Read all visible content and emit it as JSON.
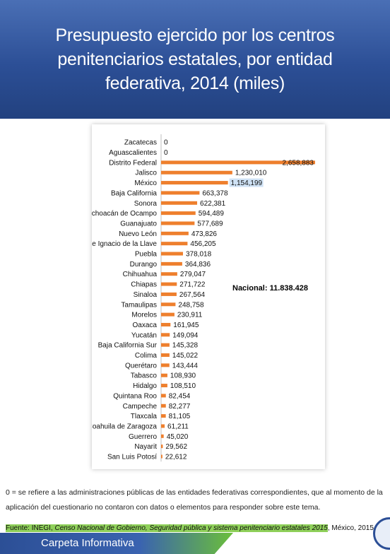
{
  "header": {
    "title": "Presupuesto ejercido por los centros penitenciarios estatales, por entidad federativa, 2014 (miles)"
  },
  "chart_data": {
    "type": "bar",
    "orientation": "horizontal",
    "categories": [
      "Zacatecas",
      "Aguascalientes",
      "Distrito Federal",
      "Jalisco",
      "México",
      "Baja California",
      "Sonora",
      "Michoacán de Ocampo",
      "Guanajuato",
      "Nuevo León",
      "Veracruz de Ignacio de la Llave",
      "Puebla",
      "Durango",
      "Chihuahua",
      "Chiapas",
      "Sinaloa",
      "Tamaulipas",
      "Morelos",
      "Oaxaca",
      "Yucatán",
      "Baja California Sur",
      "Colima",
      "Querétaro",
      "Tabasco",
      "Hidalgo",
      "Quintana Roo",
      "Campeche",
      "Tlaxcala",
      "Coahuila de Zaragoza",
      "Guerrero",
      "Nayarit",
      "San Luis Potosí"
    ],
    "values": [
      0,
      0,
      2658883,
      1230010,
      1154199,
      663378,
      622381,
      594489,
      577689,
      473826,
      456205,
      378018,
      364836,
      279047,
      271722,
      267564,
      248758,
      230911,
      161945,
      149094,
      145328,
      145022,
      143444,
      108930,
      108510,
      82454,
      82277,
      81105,
      61211,
      45020,
      29562,
      22612
    ],
    "value_labels": [
      "0",
      "0",
      "2,658,883",
      "1,230,010",
      "1,154,199",
      "663,378",
      "622,381",
      "594,489",
      "577,689",
      "473,826",
      "456,205",
      "378,018",
      "364,836",
      "279,047",
      "271,722",
      "267,564",
      "248,758",
      "230,911",
      "161,945",
      "149,094",
      "145,328",
      "145,022",
      "143,444",
      "108,930",
      "108,510",
      "82,454",
      "82,277",
      "81,105",
      "61,211",
      "45,020",
      "29,562",
      "22,612"
    ],
    "bar_color": "#ee7f2d",
    "annotation": "Nacional: 11.838.428"
  },
  "footnote": "0 = se refiere a las administraciones públicas de las entidades federativas correspondientes, que al momento de la aplicación del cuestionario no contaron con datos o elementos para responder sobre este tema.",
  "source": {
    "lead": "Fuente: INEGI, ",
    "italic": "Censo Nacional de Gobierno, Seguridad pública y sistema penitenciario estatales 2015",
    "tail": ", México, 2015."
  },
  "footer": {
    "brand": "Carpeta Informativa"
  },
  "colors": {
    "banner": "#2c4f96",
    "bar": "#ee7f2d",
    "highlight": "#cfe2f5"
  }
}
